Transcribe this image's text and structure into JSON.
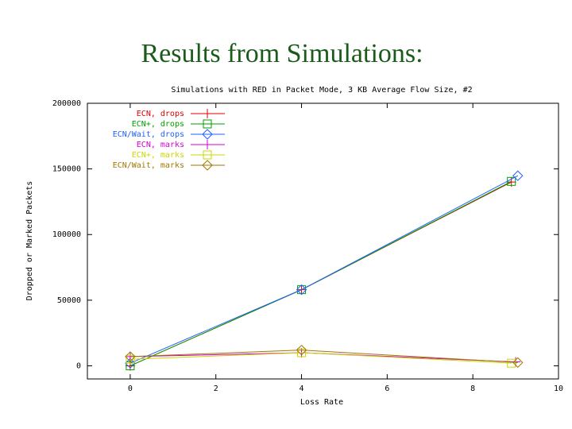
{
  "title": "Results from Simulations:",
  "chart_data": {
    "type": "line",
    "title": "Simulations with RED in Packet Mode, 3 KB Average Flow Size, #2",
    "x_label": "Loss Rate",
    "y_label": "Dropped or Marked Packets",
    "xlim": [
      -1,
      10
    ],
    "xticks": [
      0,
      2,
      4,
      6,
      8,
      10
    ],
    "ylim": [
      -10000,
      200000
    ],
    "yticks": [
      0,
      50000,
      100000,
      150000,
      200000
    ],
    "legend": "top-left",
    "series": [
      {
        "name": "ECN, drops",
        "color": "#e00000",
        "marker": "plus",
        "x": [
          0,
          4,
          8.9
        ],
        "values": [
          0,
          58000,
          140000
        ]
      },
      {
        "name": "ECN+, drops",
        "color": "#00a000",
        "marker": "square",
        "x": [
          0,
          4,
          8.9
        ],
        "values": [
          0,
          58000,
          140500
        ]
      },
      {
        "name": "ECN/Wait, drops",
        "color": "#2060ff",
        "marker": "diamond",
        "x": [
          0,
          4,
          9.05
        ],
        "values": [
          2000,
          58000,
          144800
        ]
      },
      {
        "name": "ECN, marks",
        "color": "#d000d0",
        "marker": "plus",
        "x": [
          0,
          4,
          9
        ],
        "values": [
          7000,
          10000,
          3000
        ]
      },
      {
        "name": "ECN+, marks",
        "color": "#c8d800",
        "marker": "square",
        "x": [
          0,
          4,
          8.9
        ],
        "values": [
          5000,
          10000,
          2000
        ]
      },
      {
        "name": "ECN/Wait, marks",
        "color": "#a07800",
        "marker": "diamond",
        "x": [
          0,
          4,
          9.05
        ],
        "values": [
          7000,
          12000,
          2500
        ]
      }
    ]
  }
}
